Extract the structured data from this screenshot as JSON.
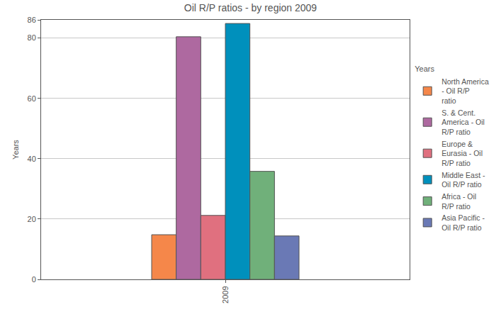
{
  "chart_data": {
    "type": "bar",
    "title": "Oil R/P ratios - by region 2009",
    "y_label": "Years",
    "legend_title": "Years",
    "categories": [
      "2009"
    ],
    "series": [
      {
        "name": "North America - Oil R/P ratio",
        "color": "#f5874a",
        "values": [
          14.8
        ]
      },
      {
        "name": "S. & Cent. America - Oil R/P ratio",
        "color": "#ae69a0",
        "values": [
          80.4
        ]
      },
      {
        "name": "Europe & Eurasia - Oil R/P ratio",
        "color": "#e0707f",
        "values": [
          21.2
        ]
      },
      {
        "name": "Middle East - Oil R/P ratio",
        "color": "#0090bc",
        "values": [
          84.8
        ]
      },
      {
        "name": "Africa - Oil R/P ratio",
        "color": "#70b07a",
        "values": [
          35.8
        ]
      },
      {
        "name": "Asia Pacific - Oil R/P ratio",
        "color": "#6a79b5",
        "values": [
          14.4
        ]
      }
    ],
    "ylim": [
      0,
      86
    ],
    "yticks": [
      0,
      20,
      40,
      60,
      80,
      86
    ],
    "grid": true,
    "legend": "right"
  }
}
